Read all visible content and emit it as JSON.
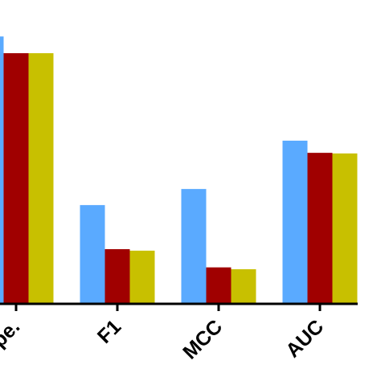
{
  "chart_data": {
    "type": "bar",
    "categories": [
      "pe.",
      "F1",
      "MCC",
      "AUC"
    ],
    "series": [
      {
        "color": "#5aaaff",
        "values": [
          0.88,
          0.325,
          0.378,
          0.537
        ]
      },
      {
        "color": "#a00000",
        "values": [
          0.825,
          0.18,
          0.12,
          0.497
        ]
      },
      {
        "color": "#c8c000",
        "values": [
          0.825,
          0.175,
          0.114,
          0.495
        ]
      }
    ],
    "ylim": [
      0,
      1
    ]
  }
}
